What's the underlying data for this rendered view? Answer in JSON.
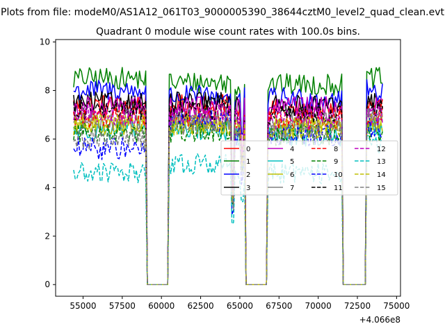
{
  "chart_data": {
    "type": "line",
    "suptitle": "Plots from file: modeM0/AS1A12_061T03_9000005390_38644cztM0_level2_quad_clean.evt",
    "title": "Quadrant 0 module wise count rates with 100.0s bins.",
    "xlabel": "",
    "ylabel": "",
    "x_offset_label": "+4.066e8",
    "xlim": [
      53250,
      75250
    ],
    "ylim": [
      -0.48,
      10.1
    ],
    "x_ticks": [
      55000,
      57500,
      60000,
      62500,
      65000,
      67500,
      70000,
      72500,
      75000
    ],
    "x_tick_labels": [
      "55000",
      "57500",
      "60000",
      "62500",
      "65000",
      "67500",
      "70000",
      "72500",
      "75000"
    ],
    "y_ticks": [
      0,
      2,
      4,
      6,
      8,
      10
    ],
    "y_tick_labels": [
      "0",
      "2",
      "4",
      "6",
      "8",
      "10"
    ],
    "x_range": [
      54400,
      74100
    ],
    "gaps": [
      {
        "start": 59100,
        "stop": 60400
      },
      {
        "start": 65400,
        "stop": 66700
      },
      {
        "start": 71600,
        "stop": 73000
      }
    ],
    "legend_location": "center-right",
    "legend_columns": 4,
    "series": [
      {
        "name": "0",
        "color": "#ff0000",
        "dash": "solid",
        "level": 7.4,
        "seg_scale": [
          1.0,
          1.0,
          0.97,
          1.0,
          1.0
        ]
      },
      {
        "name": "1",
        "color": "#008000",
        "dash": "solid",
        "level": 8.5,
        "seg_scale": [
          1.0,
          0.98,
          0.97,
          1.0,
          1.0
        ]
      },
      {
        "name": "2",
        "color": "#0000ff",
        "dash": "solid",
        "level": 8.0,
        "seg_scale": [
          1.0,
          0.97,
          0.96,
          1.0,
          1.0
        ]
      },
      {
        "name": "3",
        "color": "#000000",
        "dash": "solid",
        "level": 7.5,
        "seg_scale": [
          1.0,
          1.0,
          0.98,
          1.0,
          1.0
        ]
      },
      {
        "name": "4",
        "color": "#bf00bf",
        "dash": "solid",
        "level": 7.3,
        "seg_scale": [
          1.0,
          1.0,
          1.0,
          1.0,
          1.0
        ]
      },
      {
        "name": "5",
        "color": "#00bfbf",
        "dash": "solid",
        "level": 6.4,
        "seg_scale": [
          1.0,
          1.0,
          0.96,
          1.0,
          1.0
        ]
      },
      {
        "name": "6",
        "color": "#bfbf00",
        "dash": "solid",
        "level": 6.6,
        "seg_scale": [
          1.0,
          1.0,
          0.98,
          1.0,
          1.0
        ]
      },
      {
        "name": "7",
        "color": "#808080",
        "dash": "solid",
        "level": 6.8,
        "seg_scale": [
          1.0,
          1.0,
          0.98,
          1.0,
          1.0
        ]
      },
      {
        "name": "8",
        "color": "#ff0000",
        "dash": "dashed",
        "level": 6.9,
        "seg_scale": [
          1.0,
          1.0,
          0.98,
          1.0,
          1.0
        ]
      },
      {
        "name": "9",
        "color": "#008000",
        "dash": "dashed",
        "level": 6.3,
        "seg_scale": [
          1.0,
          1.0,
          0.98,
          1.0,
          1.0
        ]
      },
      {
        "name": "10",
        "color": "#0000ff",
        "dash": "dashed",
        "level": 5.6,
        "seg_scale": [
          1.0,
          1.2,
          1.1,
          1.15,
          1.1
        ]
      },
      {
        "name": "11",
        "color": "#000000",
        "dash": "dashed",
        "level": 7.2,
        "seg_scale": [
          1.0,
          1.0,
          0.98,
          1.0,
          1.0
        ]
      },
      {
        "name": "12",
        "color": "#bf00bf",
        "dash": "dashed",
        "level": 7.0,
        "seg_scale": [
          1.0,
          1.0,
          0.98,
          1.0,
          1.0
        ]
      },
      {
        "name": "13",
        "color": "#00bfbf",
        "dash": "dashed",
        "level": 4.6,
        "seg_scale": [
          1.0,
          1.08,
          1.0,
          1.25,
          1.3
        ]
      },
      {
        "name": "14",
        "color": "#bfbf00",
        "dash": "dashed",
        "level": 6.6,
        "seg_scale": [
          1.0,
          1.0,
          0.98,
          1.0,
          1.0
        ]
      },
      {
        "name": "15",
        "color": "#808080",
        "dash": "dashed",
        "level": 6.0,
        "seg_scale": [
          1.0,
          1.1,
          1.05,
          1.15,
          1.15
        ]
      }
    ]
  }
}
